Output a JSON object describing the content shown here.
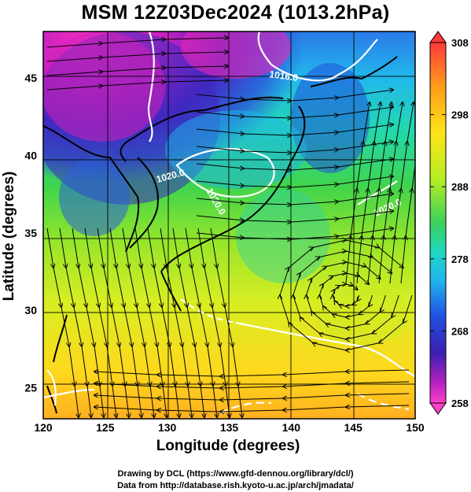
{
  "title": "MSM 12Z03Dec2024 (1013.2hPa)",
  "y_axis_title": "Latitude  (degrees)",
  "x_axis_title": "Longitude (degrees)",
  "credits": [
    "Drawing by DCL (https://www.gfd-dennou.org/library/dcl/)",
    "Data from http://database.rish.kyoto-u.ac.jp/arch/jmadata/"
  ],
  "x_ticks": [
    "120",
    "125",
    "130",
    "135",
    "140",
    "145",
    "150"
  ],
  "y_ticks": [
    "25",
    "30",
    "35",
    "40",
    "45"
  ],
  "colorbar": {
    "ticks": [
      "308",
      "298",
      "288",
      "278",
      "268",
      "258"
    ],
    "range": [
      258,
      308
    ],
    "colors": [
      "#ff2060",
      "#ff5a3a",
      "#ff9a1a",
      "#ffd21a",
      "#d2f020",
      "#5ad23a",
      "#20d8a0",
      "#20c8e6",
      "#2070e6",
      "#2030b0",
      "#7a20c8",
      "#e020b0",
      "#ff40c0"
    ]
  },
  "map_data": {
    "lon_range": [
      120,
      150
    ],
    "lat_range": [
      23,
      48
    ],
    "gridlines": true,
    "isobar_labels": [
      "1016.0",
      "1020.0",
      "1020.0",
      "1020.0"
    ]
  }
}
